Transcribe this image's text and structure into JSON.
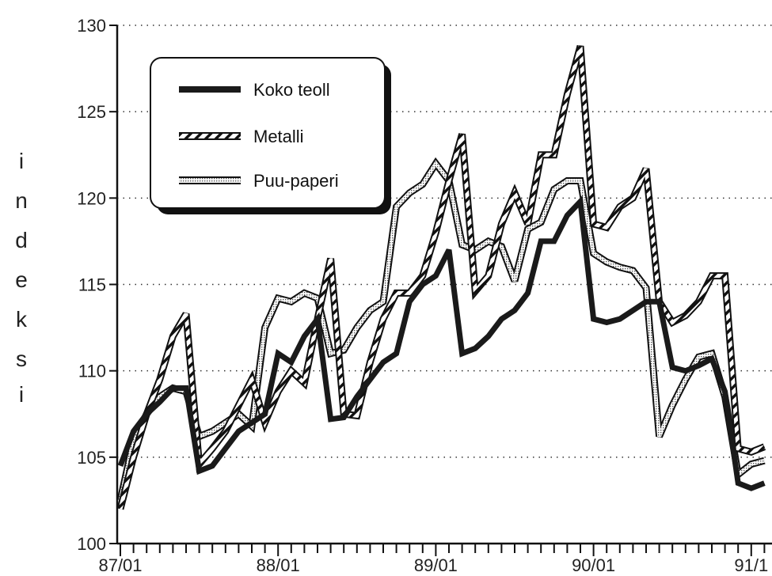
{
  "chart_data": {
    "type": "line",
    "title": "",
    "xlabel": "",
    "ylabel": "indeksi",
    "ylim": [
      100,
      130
    ],
    "yticks": [
      100,
      105,
      110,
      115,
      120,
      125,
      130
    ],
    "xtick_labels": [
      "87/01",
      "88/01",
      "89/01",
      "90/01",
      "91/1"
    ],
    "x_start": "1987-01",
    "x_unit": "month",
    "grid": "horizontal-dotted",
    "legend_position": "top-left",
    "series": [
      {
        "name": "Koko teoll",
        "style": "solid",
        "values": [
          104.5,
          106.5,
          107.5,
          108.2,
          109.0,
          109.0,
          104.2,
          104.5,
          105.5,
          106.5,
          107.0,
          107.5,
          111.0,
          110.5,
          112.0,
          113.0,
          107.2,
          107.3,
          108.5,
          109.5,
          110.5,
          111.0,
          114.0,
          115.0,
          115.5,
          117.0,
          111.0,
          111.3,
          112.0,
          113.0,
          113.5,
          114.5,
          117.5,
          117.5,
          119.0,
          119.8,
          113.0,
          112.8,
          113.0,
          113.5,
          114.0,
          114.0,
          110.2,
          110.0,
          110.3,
          110.7,
          108.8,
          103.5,
          103.2,
          103.5
        ]
      },
      {
        "name": "Metalli",
        "style": "hatched",
        "values": [
          102.0,
          105.0,
          107.5,
          109.5,
          112.0,
          113.3,
          104.6,
          105.5,
          106.5,
          108.0,
          109.5,
          107.0,
          108.8,
          110.0,
          109.3,
          113.0,
          116.5,
          107.5,
          107.4,
          110.5,
          113.0,
          114.5,
          114.5,
          115.5,
          118.0,
          121.0,
          123.7,
          114.6,
          115.5,
          118.5,
          120.3,
          118.5,
          122.5,
          122.5,
          126.0,
          128.8,
          118.5,
          118.3,
          119.5,
          120.0,
          121.7,
          114.0,
          112.8,
          113.2,
          114.0,
          115.5,
          115.5,
          105.5,
          105.3,
          105.6
        ]
      },
      {
        "name": "Puu-paperi",
        "style": "dotted",
        "values": [
          102.5,
          106.0,
          107.5,
          108.5,
          109.0,
          108.8,
          106.2,
          106.5,
          107.0,
          107.5,
          106.8,
          112.5,
          114.2,
          114.0,
          114.5,
          114.2,
          111.0,
          111.2,
          112.5,
          113.5,
          114.0,
          119.5,
          120.3,
          120.8,
          122.0,
          121.0,
          117.3,
          117.0,
          117.5,
          117.2,
          115.2,
          118.2,
          118.6,
          120.5,
          121.0,
          121.0,
          116.8,
          116.3,
          116.0,
          115.8,
          114.8,
          106.2,
          108.0,
          109.5,
          110.8,
          111.0,
          108.5,
          104.0,
          104.6,
          104.8
        ]
      }
    ]
  }
}
